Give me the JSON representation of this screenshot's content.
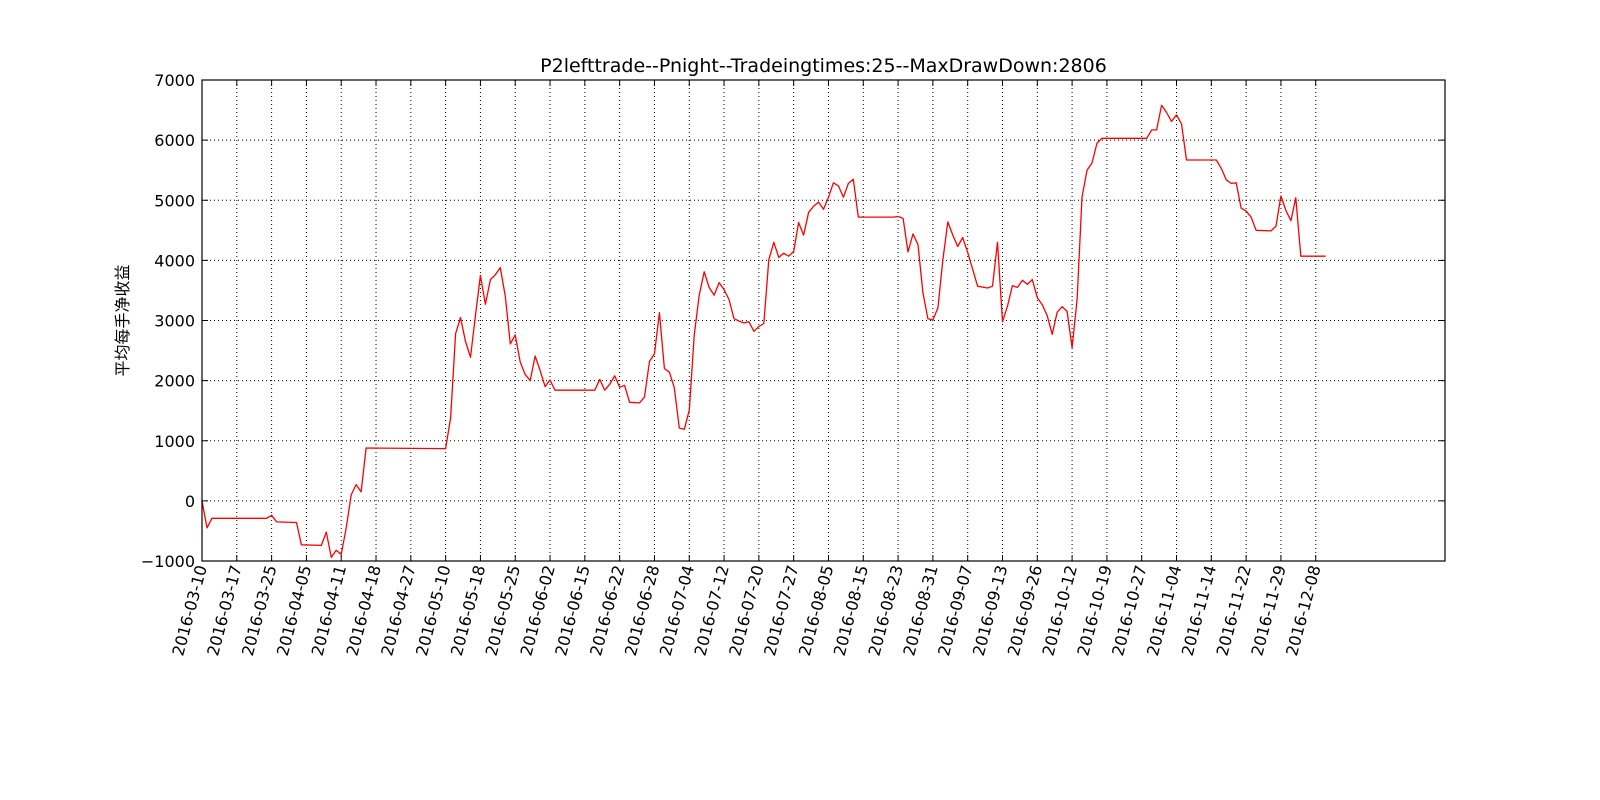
{
  "chart_data": {
    "type": "line",
    "title": "P2lefttrade--Pnight--Tradeingtimes:25--MaxDrawDown:2806",
    "xlabel": "",
    "ylabel": "平均每手净收益",
    "ylim": [
      -1000,
      7000
    ],
    "yticks": [
      -1000,
      0,
      1000,
      2000,
      3000,
      4000,
      5000,
      6000,
      7000
    ],
    "xlim_index": [
      0,
      250
    ],
    "xticks": [
      {
        "index": 0,
        "label": "2016-03-10"
      },
      {
        "index": 7,
        "label": "2016-03-17"
      },
      {
        "index": 14,
        "label": "2016-03-25"
      },
      {
        "index": 21,
        "label": "2016-04-05"
      },
      {
        "index": 28,
        "label": "2016-04-11"
      },
      {
        "index": 35,
        "label": "2016-04-18"
      },
      {
        "index": 42,
        "label": "2016-04-27"
      },
      {
        "index": 49,
        "label": "2016-05-10"
      },
      {
        "index": 56,
        "label": "2016-05-18"
      },
      {
        "index": 63,
        "label": "2016-05-25"
      },
      {
        "index": 70,
        "label": "2016-06-02"
      },
      {
        "index": 77,
        "label": "2016-06-15"
      },
      {
        "index": 84,
        "label": "2016-06-22"
      },
      {
        "index": 91,
        "label": "2016-06-28"
      },
      {
        "index": 98,
        "label": "2016-07-04"
      },
      {
        "index": 105,
        "label": "2016-07-12"
      },
      {
        "index": 112,
        "label": "2016-07-20"
      },
      {
        "index": 119,
        "label": "2016-07-27"
      },
      {
        "index": 126,
        "label": "2016-08-05"
      },
      {
        "index": 133,
        "label": "2016-08-15"
      },
      {
        "index": 140,
        "label": "2016-08-23"
      },
      {
        "index": 147,
        "label": "2016-08-31"
      },
      {
        "index": 154,
        "label": "2016-09-07"
      },
      {
        "index": 161,
        "label": "2016-09-13"
      },
      {
        "index": 168,
        "label": "2016-09-26"
      },
      {
        "index": 175,
        "label": "2016-10-12"
      },
      {
        "index": 182,
        "label": "2016-10-19"
      },
      {
        "index": 189,
        "label": "2016-10-27"
      },
      {
        "index": 196,
        "label": "2016-11-04"
      },
      {
        "index": 203,
        "label": "2016-11-14"
      },
      {
        "index": 210,
        "label": "2016-11-22"
      },
      {
        "index": 217,
        "label": "2016-11-29"
      },
      {
        "index": 224,
        "label": "2016-12-08"
      }
    ],
    "grid": true,
    "series": [
      {
        "color": "#ff0000",
        "points": [
          [
            0,
            0
          ],
          [
            1,
            -450
          ],
          [
            2,
            -290
          ],
          [
            13,
            -290
          ],
          [
            14,
            -240
          ],
          [
            15,
            -350
          ],
          [
            19,
            -360
          ],
          [
            20,
            -730
          ],
          [
            24,
            -740
          ],
          [
            25,
            -520
          ],
          [
            26,
            -940
          ],
          [
            27,
            -820
          ],
          [
            28,
            -890
          ],
          [
            29,
            -450
          ],
          [
            30,
            100
          ],
          [
            31,
            270
          ],
          [
            32,
            150
          ],
          [
            33,
            880
          ],
          [
            49,
            870
          ],
          [
            50,
            1380
          ],
          [
            51,
            2780
          ],
          [
            52,
            3050
          ],
          [
            53,
            2650
          ],
          [
            54,
            2390
          ],
          [
            55,
            3090
          ],
          [
            56,
            3750
          ],
          [
            57,
            3270
          ],
          [
            58,
            3680
          ],
          [
            59,
            3760
          ],
          [
            60,
            3880
          ],
          [
            61,
            3400
          ],
          [
            62,
            2610
          ],
          [
            63,
            2760
          ],
          [
            64,
            2310
          ],
          [
            65,
            2100
          ],
          [
            66,
            2000
          ],
          [
            67,
            2410
          ],
          [
            68,
            2170
          ],
          [
            69,
            1900
          ],
          [
            70,
            2010
          ],
          [
            71,
            1840
          ],
          [
            79,
            1840
          ],
          [
            80,
            2020
          ],
          [
            81,
            1840
          ],
          [
            82,
            1940
          ],
          [
            83,
            2080
          ],
          [
            84,
            1890
          ],
          [
            85,
            1920
          ],
          [
            86,
            1640
          ],
          [
            88,
            1630
          ],
          [
            89,
            1730
          ],
          [
            90,
            2320
          ],
          [
            91,
            2450
          ],
          [
            92,
            3130
          ],
          [
            93,
            2200
          ],
          [
            94,
            2140
          ],
          [
            95,
            1880
          ],
          [
            96,
            1210
          ],
          [
            97,
            1190
          ],
          [
            98,
            1510
          ],
          [
            99,
            2750
          ],
          [
            100,
            3420
          ],
          [
            101,
            3810
          ],
          [
            102,
            3550
          ],
          [
            103,
            3420
          ],
          [
            104,
            3630
          ],
          [
            105,
            3510
          ],
          [
            106,
            3350
          ],
          [
            107,
            3030
          ],
          [
            108,
            2990
          ],
          [
            109,
            2960
          ],
          [
            110,
            2980
          ],
          [
            111,
            2820
          ],
          [
            112,
            2900
          ],
          [
            113,
            2950
          ],
          [
            114,
            4010
          ],
          [
            115,
            4300
          ],
          [
            116,
            4050
          ],
          [
            117,
            4120
          ],
          [
            118,
            4070
          ],
          [
            119,
            4150
          ],
          [
            120,
            4630
          ],
          [
            121,
            4420
          ],
          [
            122,
            4800
          ],
          [
            123,
            4900
          ],
          [
            124,
            4970
          ],
          [
            125,
            4850
          ],
          [
            126,
            5050
          ],
          [
            127,
            5290
          ],
          [
            128,
            5240
          ],
          [
            129,
            5050
          ],
          [
            130,
            5280
          ],
          [
            131,
            5350
          ],
          [
            132,
            4720
          ],
          [
            139,
            4720
          ],
          [
            140,
            4730
          ],
          [
            141,
            4700
          ],
          [
            142,
            4140
          ],
          [
            143,
            4440
          ],
          [
            144,
            4260
          ],
          [
            145,
            3460
          ],
          [
            146,
            3030
          ],
          [
            147,
            3010
          ],
          [
            148,
            3210
          ],
          [
            149,
            4000
          ],
          [
            150,
            4640
          ],
          [
            151,
            4420
          ],
          [
            152,
            4230
          ],
          [
            153,
            4380
          ],
          [
            154,
            4130
          ],
          [
            155,
            3850
          ],
          [
            156,
            3570
          ],
          [
            158,
            3540
          ],
          [
            159,
            3570
          ],
          [
            160,
            4300
          ],
          [
            161,
            2980
          ],
          [
            162,
            3240
          ],
          [
            163,
            3580
          ],
          [
            164,
            3550
          ],
          [
            165,
            3670
          ],
          [
            166,
            3600
          ],
          [
            167,
            3680
          ],
          [
            168,
            3380
          ],
          [
            169,
            3260
          ],
          [
            170,
            3080
          ],
          [
            171,
            2770
          ],
          [
            172,
            3140
          ],
          [
            173,
            3230
          ],
          [
            174,
            3150
          ],
          [
            175,
            2550
          ],
          [
            176,
            3350
          ],
          [
            177,
            5050
          ],
          [
            178,
            5500
          ],
          [
            179,
            5620
          ],
          [
            180,
            5950
          ],
          [
            181,
            6030
          ],
          [
            190,
            6030
          ],
          [
            191,
            6170
          ],
          [
            192,
            6170
          ],
          [
            193,
            6580
          ],
          [
            194,
            6460
          ],
          [
            195,
            6310
          ],
          [
            196,
            6420
          ],
          [
            197,
            6270
          ],
          [
            198,
            5670
          ],
          [
            204,
            5670
          ],
          [
            205,
            5530
          ],
          [
            206,
            5340
          ],
          [
            207,
            5280
          ],
          [
            208,
            5290
          ],
          [
            209,
            4870
          ],
          [
            210,
            4820
          ],
          [
            211,
            4720
          ],
          [
            212,
            4500
          ],
          [
            215,
            4490
          ],
          [
            216,
            4570
          ],
          [
            217,
            5070
          ],
          [
            218,
            4830
          ],
          [
            219,
            4660
          ],
          [
            220,
            5040
          ],
          [
            221,
            4070
          ],
          [
            226,
            4070
          ]
        ]
      }
    ]
  }
}
